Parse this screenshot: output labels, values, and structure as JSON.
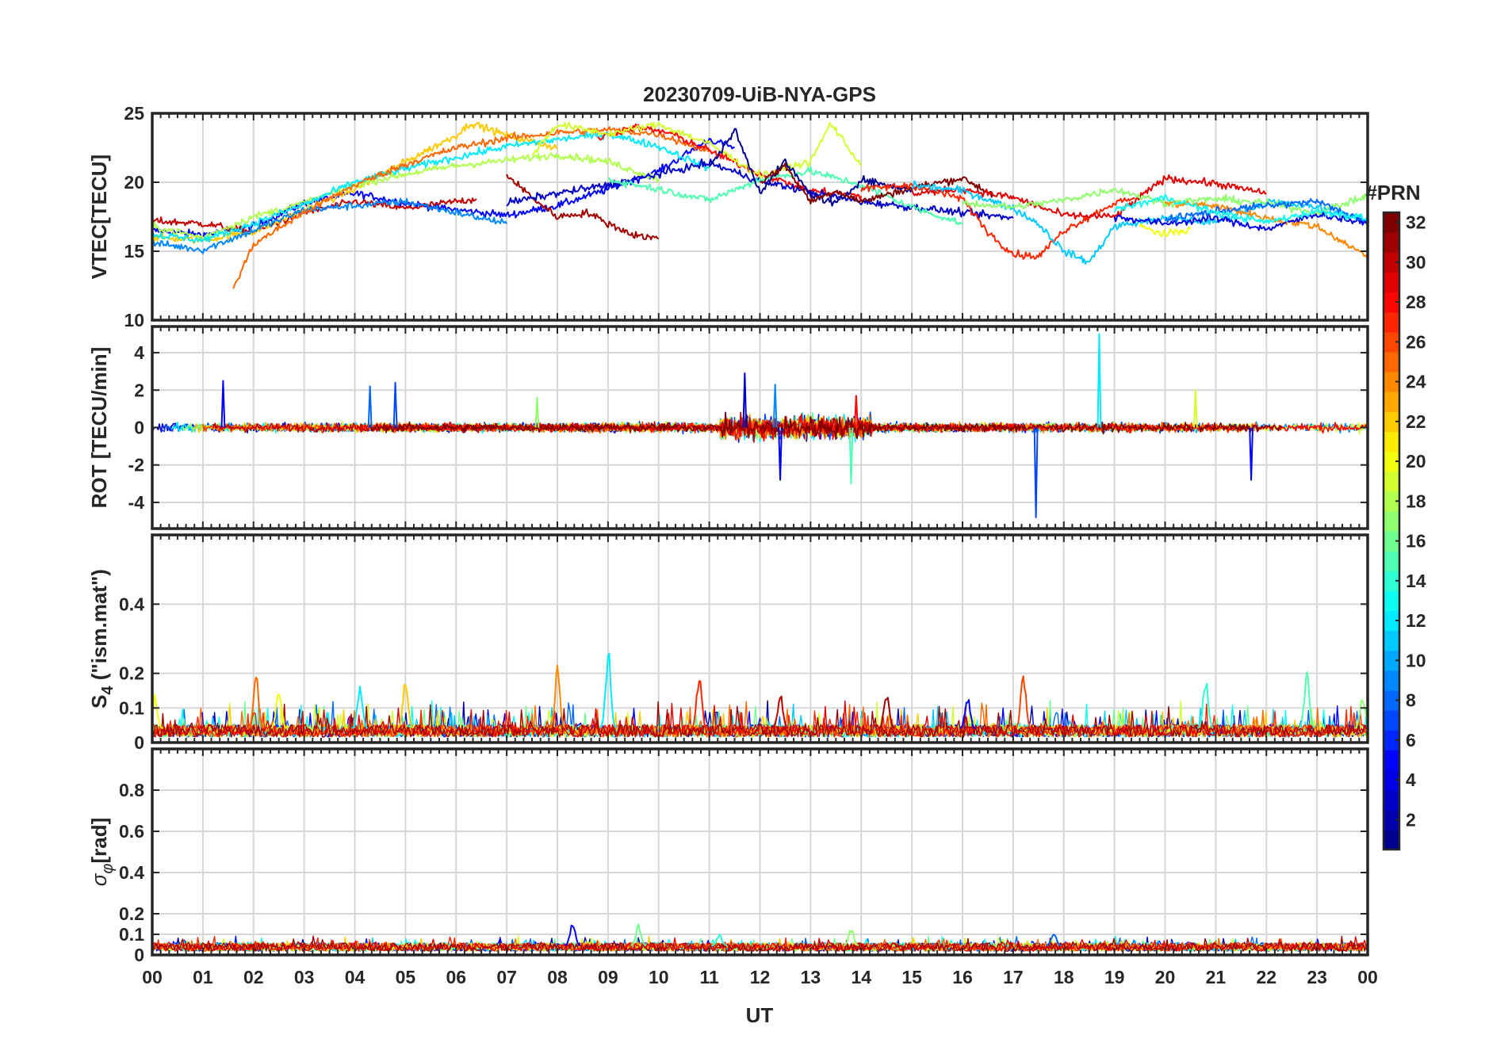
{
  "chart_data": {
    "type": "line",
    "title": "20230709-UiB-NYA-GPS",
    "xlabel": "UT",
    "x_tick_labels": [
      "00",
      "01",
      "02",
      "03",
      "04",
      "05",
      "06",
      "07",
      "08",
      "09",
      "10",
      "11",
      "12",
      "13",
      "14",
      "15",
      "16",
      "17",
      "18",
      "19",
      "20",
      "21",
      "22",
      "23",
      "00"
    ],
    "xlim": [
      0,
      24
    ],
    "grid": true,
    "colorbar": {
      "label": "#PRN",
      "range": [
        1,
        32
      ],
      "tick_labels": [
        "2",
        "4",
        "6",
        "8",
        "10",
        "12",
        "14",
        "16",
        "18",
        "20",
        "22",
        "24",
        "26",
        "28",
        "30",
        "32"
      ],
      "colors": [
        "#00008f",
        "#0000ff",
        "#0080ff",
        "#00ffff",
        "#80ff80",
        "#ffff00",
        "#ff8000",
        "#ff0000",
        "#800000"
      ]
    },
    "panels": [
      {
        "id": "vtec",
        "ylabel": "VTEC[TECU]",
        "ylim": [
          10,
          25
        ],
        "y_ticks": [
          10,
          15,
          20,
          25
        ],
        "y_tick_labels": [
          "10",
          "15",
          "20",
          "25"
        ],
        "series": [
          {
            "prn": 5,
            "x": [
              0,
              1,
              2,
              3,
              4,
              5,
              6,
              7,
              8,
              9,
              10,
              11,
              11.5
            ],
            "y": [
              16.5,
              16.2,
              16.8,
              18.5,
              19.2,
              18.5,
              18.0,
              17.6,
              18.3,
              19.5,
              20.8,
              23.1,
              22.5
            ]
          },
          {
            "prn": 30,
            "x": [
              0,
              1,
              2,
              3,
              4,
              5,
              6.4
            ],
            "y": [
              17.2,
              17.0,
              16.4,
              17.8,
              18.6,
              18.1,
              18.8
            ]
          },
          {
            "prn": 22,
            "x": [
              0,
              1,
              2,
              3,
              4,
              5,
              6,
              6.3,
              7,
              8
            ],
            "y": [
              16.0,
              15.8,
              16.4,
              18.0,
              19.5,
              21.5,
              23.4,
              24.3,
              23.4,
              22.5
            ]
          },
          {
            "prn": 9,
            "x": [
              0,
              1,
              2,
              3,
              4,
              5,
              6,
              7
            ],
            "y": [
              15.6,
              15.1,
              16.5,
              18.0,
              18.3,
              18.6,
              17.8,
              17.0
            ]
          },
          {
            "prn": 18,
            "x": [
              0,
              1,
              2,
              3,
              4,
              5,
              6,
              7,
              8,
              9,
              10
            ],
            "y": [
              16.8,
              16.0,
              17.5,
              18.5,
              19.8,
              20.6,
              21.2,
              21.6,
              22.0,
              21.5,
              20.2
            ]
          },
          {
            "prn": 12,
            "x": [
              0,
              1,
              2,
              3,
              4,
              5,
              6,
              7,
              8,
              9,
              10,
              11
            ],
            "y": [
              16.2,
              15.8,
              17.0,
              18.4,
              20.0,
              21.0,
              21.8,
              22.6,
              23.1,
              23.5,
              22.6,
              21.0
            ]
          },
          {
            "prn": 25,
            "x": [
              1.6,
              2,
              3,
              4,
              5,
              6,
              7,
              8,
              9,
              10,
              11
            ],
            "y": [
              12.3,
              15.5,
              17.8,
              19.8,
              21.3,
              22.5,
              23.2,
              23.6,
              23.8,
              23.5,
              22.2
            ]
          },
          {
            "prn": 28,
            "x": [
              8.8,
              9.5,
              10.2,
              11,
              12,
              13,
              14
            ],
            "y": [
              23.2,
              24.0,
              23.6,
              22.3,
              20.6,
              19.4,
              19.0
            ]
          },
          {
            "prn": 31,
            "x": [
              7,
              7.6,
              8,
              8.6,
              9,
              9.5,
              10
            ],
            "y": [
              20.5,
              18.6,
              17.5,
              17.8,
              17.0,
              16.2,
              15.9
            ]
          },
          {
            "prn": 19,
            "x": [
              7.5,
              8,
              9,
              10,
              11,
              12,
              13,
              13.4,
              14
            ],
            "y": [
              22.0,
              24.2,
              23.5,
              24.2,
              22.8,
              20.5,
              21.5,
              24.3,
              21.2
            ]
          },
          {
            "prn": 3,
            "x": [
              7,
              8,
              9,
              10,
              11,
              12,
              13,
              14,
              15,
              16,
              17
            ],
            "y": [
              18.5,
              19.2,
              19.8,
              20.6,
              21.4,
              20.1,
              19.3,
              18.6,
              18.2,
              17.8,
              17.4
            ]
          },
          {
            "prn": 15,
            "x": [
              9,
              10,
              11,
              12,
              13,
              14,
              15,
              16
            ],
            "y": [
              20.2,
              19.5,
              18.7,
              20.2,
              20.8,
              19.8,
              18.2,
              17.0
            ]
          },
          {
            "prn": 1,
            "x": [
              11,
              11.5,
              12,
              12.5,
              13,
              13.5,
              14,
              15
            ],
            "y": [
              21.0,
              23.8,
              19.3,
              21.5,
              19.1,
              18.4,
              20.2,
              19.4
            ]
          },
          {
            "prn": 32,
            "x": [
              12,
              12.5,
              13,
              13.5,
              14,
              15,
              16,
              16.6
            ],
            "y": [
              20.0,
              21.2,
              18.6,
              19.4,
              18.6,
              19.6,
              20.3,
              19.1
            ]
          },
          {
            "prn": 27,
            "x": [
              14,
              15,
              16,
              16.5,
              17,
              17.5,
              18,
              19,
              19.4
            ],
            "y": [
              19.5,
              19.8,
              18.8,
              16.4,
              14.8,
              14.6,
              16.5,
              18.5,
              18.8
            ]
          },
          {
            "prn": 29,
            "x": [
              15,
              16,
              17,
              18,
              19,
              20,
              21,
              22
            ],
            "y": [
              19.2,
              19.5,
              18.9,
              17.6,
              17.5,
              20.3,
              19.9,
              19.2
            ]
          },
          {
            "prn": 11,
            "x": [
              15,
              16,
              17,
              17.5,
              18,
              18.5,
              19,
              20,
              21,
              22,
              23,
              24
            ],
            "y": [
              19.8,
              19.4,
              18.1,
              17.0,
              15.0,
              14.2,
              16.8,
              17.4,
              17.1,
              18.6,
              18.2,
              17.2
            ]
          },
          {
            "prn": 17,
            "x": [
              16,
              17,
              18,
              19,
              20,
              21,
              22,
              23,
              24
            ],
            "y": [
              18.5,
              18.2,
              18.7,
              19.5,
              18.5,
              18.8,
              18.5,
              17.8,
              19.0
            ]
          },
          {
            "prn": 24,
            "x": [
              20,
              21,
              22,
              23,
              24
            ],
            "y": [
              18.5,
              18.3,
              17.4,
              16.8,
              14.6
            ]
          },
          {
            "prn": 4,
            "x": [
              19,
              20,
              21,
              22,
              23,
              24
            ],
            "y": [
              17.5,
              17.0,
              17.4,
              16.6,
              17.7,
              17.0
            ]
          },
          {
            "prn": 8,
            "x": [
              20,
              21,
              22,
              23,
              24
            ],
            "y": [
              17.3,
              17.9,
              18.3,
              18.6,
              17.1
            ]
          },
          {
            "prn": 20,
            "x": [
              19.5,
              20,
              20.5
            ],
            "y": [
              16.8,
              16.2,
              16.6
            ]
          },
          {
            "prn": 13,
            "x": [
              19,
              20,
              21,
              22,
              23,
              24
            ],
            "y": [
              18.0,
              18.9,
              17.8,
              17.1,
              17.9,
              17.4
            ]
          }
        ]
      },
      {
        "id": "rot",
        "ylabel": "ROT [TECU/min]",
        "ylim": [
          -5.4,
          5.4
        ],
        "y_ticks": [
          -4,
          -2,
          0,
          2,
          4
        ],
        "y_tick_labels": [
          "-4",
          "-2",
          "0",
          "2",
          "4"
        ],
        "noise_level": 0.3,
        "enhanced_activity_hours": [
          11.2,
          14.2
        ],
        "spikes": [
          {
            "prn": 5,
            "x": 1.4,
            "y": 2.5
          },
          {
            "prn": 8,
            "x": 4.3,
            "y": 2.2
          },
          {
            "prn": 7,
            "x": 4.8,
            "y": 2.4
          },
          {
            "prn": 17,
            "x": 7.6,
            "y": 1.6
          },
          {
            "prn": 3,
            "x": 11.7,
            "y": 2.9
          },
          {
            "prn": 9,
            "x": 12.3,
            "y": 2.3
          },
          {
            "prn": 4,
            "x": 12.4,
            "y": -2.8
          },
          {
            "prn": 15,
            "x": 13.8,
            "y": -3.0
          },
          {
            "prn": 28,
            "x": 13.9,
            "y": 1.7
          },
          {
            "prn": 7,
            "x": 17.45,
            "y": -4.8
          },
          {
            "prn": 12,
            "x": 18.7,
            "y": 5.0
          },
          {
            "prn": 5,
            "x": 21.7,
            "y": -2.8
          },
          {
            "prn": 19,
            "x": 20.6,
            "y": 2.0
          }
        ]
      },
      {
        "id": "s4",
        "ylabel": "S4 (\"ism.mat\")",
        "ylabel_main": "S",
        "ylabel_sub": "4",
        "ylabel_rest": " (\"ism.mat\")",
        "ylim": [
          0,
          0.6
        ],
        "y_ticks": [
          0,
          0.1,
          0.2,
          0.4
        ],
        "y_tick_labels": [
          "0",
          "0.1",
          "0.2",
          "0.4"
        ],
        "baseline_level": 0.04,
        "peaks": [
          {
            "prn": 20,
            "x": 0.05,
            "y": 0.14
          },
          {
            "prn": 25,
            "x": 2.05,
            "y": 0.21
          },
          {
            "prn": 20,
            "x": 2.5,
            "y": 0.17
          },
          {
            "prn": 12,
            "x": 4.1,
            "y": 0.17
          },
          {
            "prn": 22,
            "x": 5.0,
            "y": 0.2
          },
          {
            "prn": 24,
            "x": 8.0,
            "y": 0.23
          },
          {
            "prn": 12,
            "x": 9.0,
            "y": 0.29
          },
          {
            "prn": 27,
            "x": 10.8,
            "y": 0.21
          },
          {
            "prn": 30,
            "x": 12.4,
            "y": 0.15
          },
          {
            "prn": 31,
            "x": 14.5,
            "y": 0.16
          },
          {
            "prn": 5,
            "x": 16.1,
            "y": 0.14
          },
          {
            "prn": 26,
            "x": 17.2,
            "y": 0.21
          },
          {
            "prn": 14,
            "x": 20.8,
            "y": 0.19
          },
          {
            "prn": 15,
            "x": 22.8,
            "y": 0.21
          },
          {
            "prn": 17,
            "x": 23.9,
            "y": 0.14
          }
        ]
      },
      {
        "id": "sigma_phi",
        "ylabel": "σφ[rad]",
        "ylabel_main": "σ",
        "ylabel_sub": "φ",
        "ylabel_rest": "[rad]",
        "ylim": [
          0,
          1.0
        ],
        "y_ticks": [
          0,
          0.1,
          0.2,
          0.4,
          0.6,
          0.8
        ],
        "y_tick_labels": [
          "0",
          "0.1",
          "0.2",
          "0.4",
          "0.6",
          "0.8"
        ],
        "baseline_level": 0.045,
        "peaks": [
          {
            "prn": 5,
            "x": 8.3,
            "y": 0.17
          },
          {
            "prn": 16,
            "x": 9.6,
            "y": 0.15
          },
          {
            "prn": 14,
            "x": 11.2,
            "y": 0.1
          },
          {
            "prn": 17,
            "x": 13.8,
            "y": 0.13
          },
          {
            "prn": 8,
            "x": 17.8,
            "y": 0.11
          }
        ]
      }
    ]
  }
}
